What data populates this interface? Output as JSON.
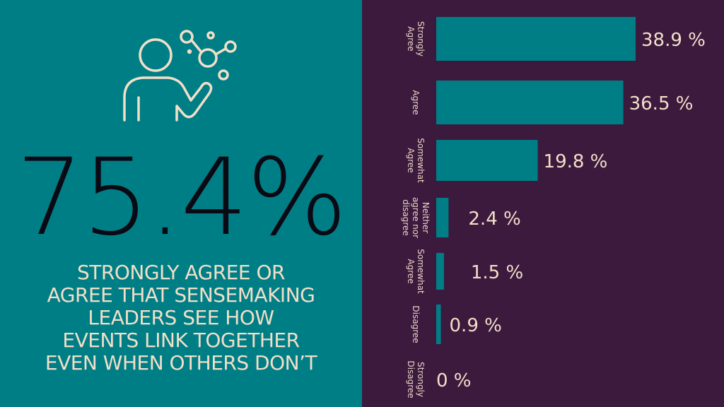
{
  "colors": {
    "left_bg": "#007e86",
    "right_bg": "#3b1a3e",
    "bar": "#007e86",
    "text_light": "#f2dfc8",
    "text_dark": "#0a0a14"
  },
  "icon": "person-connecting-dots-icon",
  "headline": {
    "value": "75.4%",
    "caption_lines": [
      "STRONGLY AGREE OR",
      "AGREE THAT SENSEMAKING",
      "LEADERS SEE HOW",
      "EVENTS LINK TOGETHER",
      "EVEN WHEN OTHERS DON’T"
    ]
  },
  "chart_data": {
    "type": "bar",
    "orientation": "horizontal",
    "categories": [
      [
        "Strongly",
        "Agree"
      ],
      [
        "Agree"
      ],
      [
        "Somewhat",
        "Agree"
      ],
      [
        "Neither",
        "agree nor",
        "disagree"
      ],
      [
        "Somewhat",
        "Agree"
      ],
      [
        "Disagree"
      ],
      [
        "Strongly",
        "Disagree"
      ]
    ],
    "values": [
      38.9,
      36.5,
      19.8,
      2.4,
      1.5,
      0.9,
      0
    ],
    "value_labels": [
      "38.9 %",
      "36.5 %",
      "19.8 %",
      "2.4 %",
      "1.5 %",
      "0.9 %",
      "0 %"
    ],
    "xlim": [
      0,
      45
    ],
    "grid": false,
    "legend": "none"
  }
}
